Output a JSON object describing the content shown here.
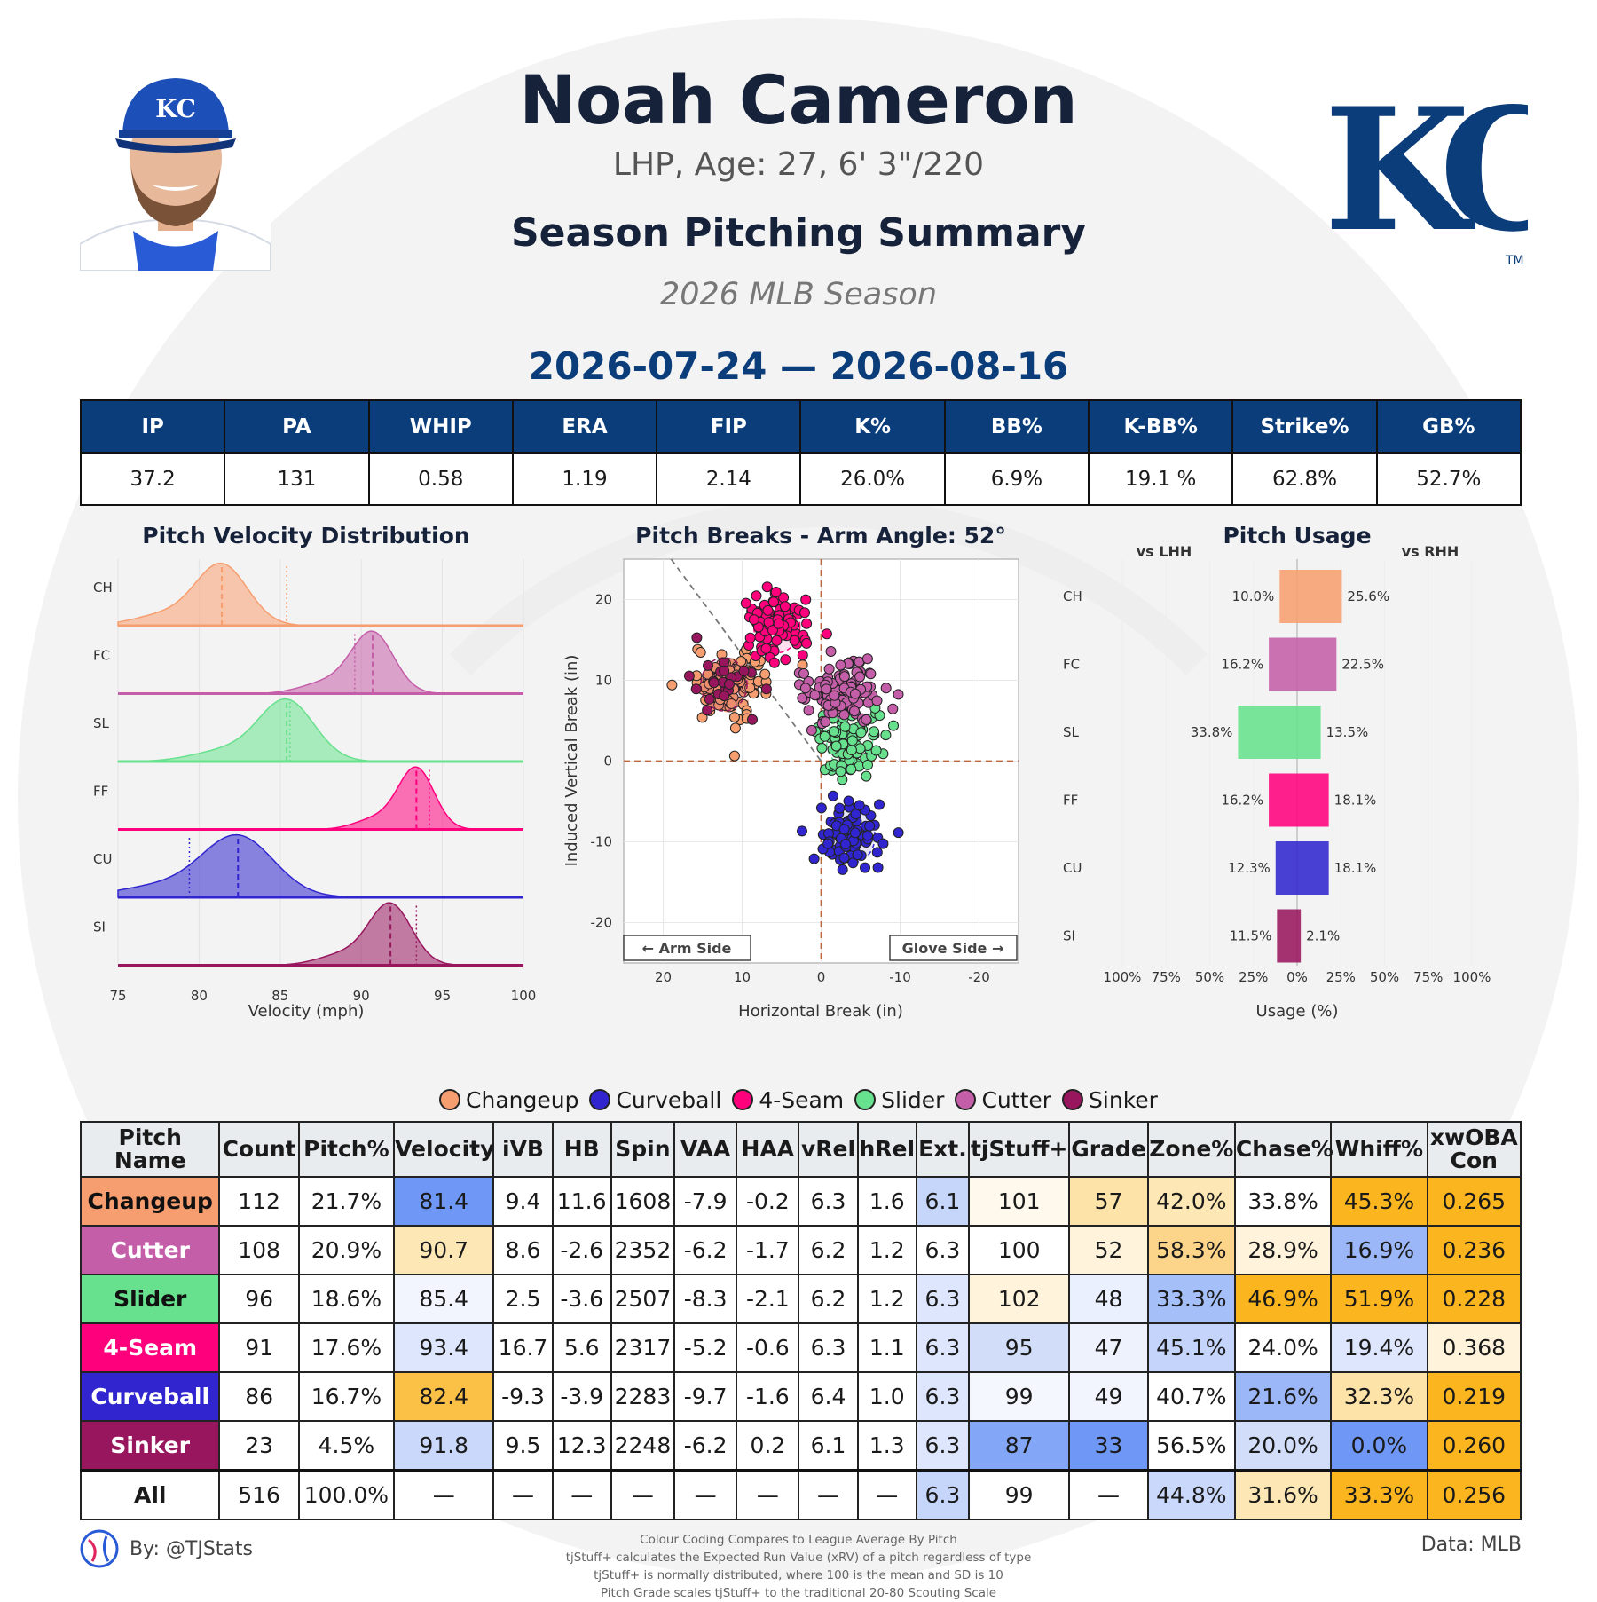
{
  "header": {
    "player_name": "Noah Cameron",
    "bio": "LHP, Age: 27, 6' 3\"/220",
    "summary_title": "Season Pitching Summary",
    "season_label": "2026 MLB Season",
    "date_range": "2026-07-24 — 2026-08-16",
    "team_logo_text": "KC",
    "team_logo_mark": "TM"
  },
  "colors": {
    "team_blue": "#0b3d7a",
    "Changeup": "#F79E70",
    "Cutter": "#C45EA8",
    "Slider": "#67E18D",
    "4-Seam": "#FF007D",
    "Curveball": "#3025CE",
    "Sinker": "#98165D"
  },
  "season_stats": {
    "headers": [
      "IP",
      "PA",
      "WHIP",
      "ERA",
      "FIP",
      "K%",
      "BB%",
      "K-BB%",
      "Strike%",
      "GB%"
    ],
    "values": [
      "37.2",
      "131",
      "0.58",
      "1.19",
      "2.14",
      "26.0%",
      "6.9%",
      "19.1 %",
      "62.8%",
      "52.7%"
    ]
  },
  "chart_data": [
    {
      "type": "area",
      "title": "Pitch Velocity Distribution",
      "xlabel": "Velocity (mph)",
      "xlim": [
        75,
        100
      ],
      "x_ticks": [
        "75",
        "80",
        "85",
        "90",
        "95",
        "100"
      ],
      "series": [
        {
          "name": "CH",
          "mean": 81.4,
          "sd": 1.6,
          "league_avg": 85.4
        },
        {
          "name": "FC",
          "mean": 90.7,
          "sd": 1.3,
          "league_avg": 89.6
        },
        {
          "name": "SL",
          "mean": 85.4,
          "sd": 1.7,
          "league_avg": 85.6
        },
        {
          "name": "FF",
          "mean": 93.4,
          "sd": 1.1,
          "league_avg": 94.2
        },
        {
          "name": "CU",
          "mean": 82.4,
          "sd": 2.2,
          "league_avg": 79.4
        },
        {
          "name": "SI",
          "mean": 91.8,
          "sd": 1.3,
          "league_avg": 93.4
        }
      ]
    },
    {
      "type": "scatter",
      "title": "Pitch Breaks - Arm Angle: 52°",
      "xlabel": "Horizontal Break (in)",
      "ylabel": "Induced Vertical Break (in)",
      "xlim": [
        25,
        -25
      ],
      "ylim": [
        -25,
        25
      ],
      "x_ticks": [
        "20",
        "10",
        "0",
        "-10",
        "-20"
      ],
      "y_ticks": [
        "20",
        "10",
        "0",
        "-10",
        "-20"
      ],
      "arm_side_label": "← Arm Side",
      "glove_side_label": "Glove Side →",
      "series": [
        {
          "name": "Changeup",
          "center_x": 11.6,
          "center_y": 9.4,
          "count": 112
        },
        {
          "name": "Cutter",
          "center_x": -2.6,
          "center_y": 8.6,
          "count": 108
        },
        {
          "name": "Slider",
          "center_x": -3.6,
          "center_y": 2.5,
          "count": 96
        },
        {
          "name": "4-Seam",
          "center_x": 5.6,
          "center_y": 16.7,
          "count": 91
        },
        {
          "name": "Curveball",
          "center_x": -3.9,
          "center_y": -9.3,
          "count": 86
        },
        {
          "name": "Sinker",
          "center_x": 12.3,
          "center_y": 9.5,
          "count": 23
        }
      ]
    },
    {
      "type": "bar",
      "title": "Pitch Usage",
      "xlabel": "Usage (%)",
      "left_label": "vs LHH",
      "right_label": "vs RHH",
      "x_ticks": [
        "100%",
        "75%",
        "50%",
        "25%",
        "0%",
        "25%",
        "50%",
        "75%",
        "100%"
      ],
      "categories": [
        "CH",
        "FC",
        "SL",
        "FF",
        "CU",
        "SI"
      ],
      "series": [
        {
          "name": "vs LHH",
          "values": [
            10.0,
            16.2,
            33.8,
            16.2,
            12.3,
            11.5
          ]
        },
        {
          "name": "vs RHH",
          "values": [
            25.6,
            22.5,
            13.5,
            18.1,
            18.1,
            2.1
          ]
        }
      ]
    }
  ],
  "legend": [
    "Changeup",
    "Curveball",
    "4-Seam",
    "Slider",
    "Cutter",
    "Sinker"
  ],
  "pitch_table": {
    "headers": [
      "Pitch Name",
      "Count",
      "Pitch%",
      "Velocity",
      "iVB",
      "HB",
      "Spin",
      "VAA",
      "HAA",
      "vRel",
      "hRel",
      "Ext.",
      "tjStuff+",
      "Grade",
      "Zone%",
      "Chase%",
      "Whiff%",
      "xwOBA Con"
    ],
    "rows": [
      {
        "name": "Changeup",
        "cells": [
          "112",
          "21.7%",
          "81.4",
          "9.4",
          "11.6",
          "1608",
          "-7.9",
          "-0.2",
          "6.3",
          "1.6",
          "6.1",
          "101",
          "57",
          "42.0%",
          "33.8%",
          "45.3%",
          "0.265"
        ]
      },
      {
        "name": "Cutter",
        "cells": [
          "108",
          "20.9%",
          "90.7",
          "8.6",
          "-2.6",
          "2352",
          "-6.2",
          "-1.7",
          "6.2",
          "1.2",
          "6.3",
          "100",
          "52",
          "58.3%",
          "28.9%",
          "16.9%",
          "0.236"
        ]
      },
      {
        "name": "Slider",
        "cells": [
          "96",
          "18.6%",
          "85.4",
          "2.5",
          "-3.6",
          "2507",
          "-8.3",
          "-2.1",
          "6.2",
          "1.2",
          "6.3",
          "102",
          "48",
          "33.3%",
          "46.9%",
          "51.9%",
          "0.228"
        ]
      },
      {
        "name": "4-Seam",
        "cells": [
          "91",
          "17.6%",
          "93.4",
          "16.7",
          "5.6",
          "2317",
          "-5.2",
          "-0.6",
          "6.3",
          "1.1",
          "6.3",
          "95",
          "47",
          "45.1%",
          "24.0%",
          "19.4%",
          "0.368"
        ]
      },
      {
        "name": "Curveball",
        "cells": [
          "86",
          "16.7%",
          "82.4",
          "-9.3",
          "-3.9",
          "2283",
          "-9.7",
          "-1.6",
          "6.4",
          "1.0",
          "6.3",
          "99",
          "49",
          "40.7%",
          "21.6%",
          "32.3%",
          "0.219"
        ]
      },
      {
        "name": "Sinker",
        "cells": [
          "23",
          "4.5%",
          "91.8",
          "9.5",
          "12.3",
          "2248",
          "-6.2",
          "0.2",
          "6.1",
          "1.3",
          "6.3",
          "87",
          "33",
          "56.5%",
          "20.0%",
          "0.0%",
          "0.260"
        ]
      }
    ],
    "all_row": {
      "name": "All",
      "cells": [
        "516",
        "100.0%",
        "—",
        "—",
        "—",
        "—",
        "—",
        "—",
        "—",
        "—",
        "6.3",
        "99",
        "—",
        "44.8%",
        "31.6%",
        "33.3%",
        "0.256"
      ]
    },
    "cell_colors": [
      [
        "#ffffff",
        "#ffffff",
        "#6f97f5",
        "#ffffff",
        "#ffffff",
        "#ffffff",
        "#ffffff",
        "#ffffff",
        "#ffffff",
        "#ffffff",
        "#c6d6fb",
        "#fff8ec",
        "#fde3a8",
        "#fde8b5",
        "#ffffff",
        "#fbb51e",
        "#fbb51e"
      ],
      [
        "#ffffff",
        "#ffffff",
        "#fde8b5",
        "#ffffff",
        "#ffffff",
        "#ffffff",
        "#ffffff",
        "#ffffff",
        "#ffffff",
        "#ffffff",
        "#ffffff",
        "#ffffff",
        "#fff3dc",
        "#fdd58a",
        "#fff3dc",
        "#9cb7f8",
        "#fbb51e"
      ],
      [
        "#ffffff",
        "#ffffff",
        "#f2f5fd",
        "#ffffff",
        "#ffffff",
        "#ffffff",
        "#ffffff",
        "#ffffff",
        "#ffffff",
        "#ffffff",
        "#dde6fc",
        "#fff3dc",
        "#eaf0fd",
        "#a5bff8",
        "#fbb51e",
        "#fbb51e",
        "#fbb51e"
      ],
      [
        "#ffffff",
        "#ffffff",
        "#dde6fc",
        "#ffffff",
        "#ffffff",
        "#ffffff",
        "#ffffff",
        "#ffffff",
        "#ffffff",
        "#ffffff",
        "#dde6fc",
        "#d2def9",
        "#eef2fd",
        "#c4d4fa",
        "#ffffff",
        "#dde6fc",
        "#fff3dc"
      ],
      [
        "#ffffff",
        "#ffffff",
        "#fbc046",
        "#ffffff",
        "#ffffff",
        "#ffffff",
        "#ffffff",
        "#ffffff",
        "#ffffff",
        "#ffffff",
        "#dde6fc",
        "#f5f7fe",
        "#f2f5fd",
        "#ffffff",
        "#9cb7f8",
        "#fde3a8",
        "#fbb51e"
      ],
      [
        "#ffffff",
        "#ffffff",
        "#c9d8fb",
        "#ffffff",
        "#ffffff",
        "#ffffff",
        "#ffffff",
        "#ffffff",
        "#ffffff",
        "#ffffff",
        "#dde6fc",
        "#84a6f7",
        "#6f97f5",
        "#ffffff",
        "#d2def9",
        "#6f97f5",
        "#fbb51e"
      ],
      [
        "#ffffff",
        "#ffffff",
        "#ffffff",
        "#ffffff",
        "#ffffff",
        "#ffffff",
        "#ffffff",
        "#ffffff",
        "#ffffff",
        "#ffffff",
        "#c6d6fb",
        "#ffffff",
        "#ffffff",
        "#c9d8fb",
        "#fde8b5",
        "#fbb51e",
        "#fbb51e"
      ]
    ]
  },
  "footer": {
    "credit": "By: @TJStats",
    "data_source": "Data: MLB",
    "notes": [
      "Colour Coding Compares to League Average By Pitch",
      "tjStuff+ calculates the Expected Run Value (xRV) of a pitch regardless of type",
      "tjStuff+ is normally distributed, where 100 is the mean and SD is 10",
      "Pitch Grade scales tjStuff+ to the traditional 20-80 Scouting Scale"
    ]
  }
}
